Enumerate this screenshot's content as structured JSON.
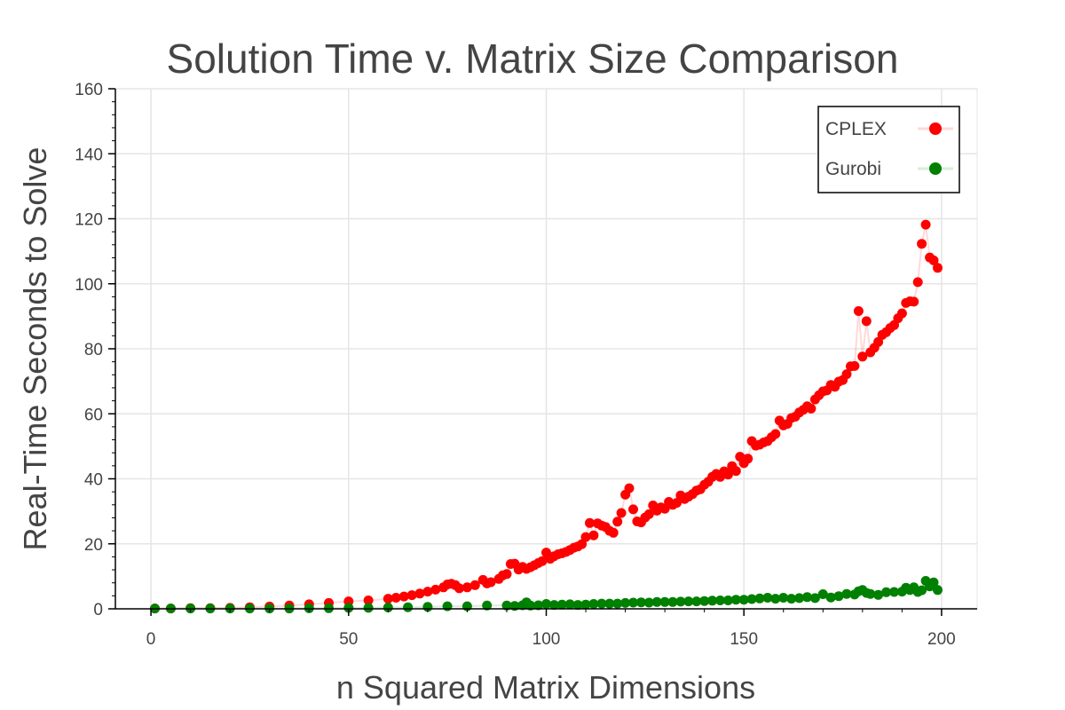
{
  "chart_data": {
    "type": "scatter",
    "title": "Solution Time v. Matrix Size Comparison",
    "xlabel": "n Squared Matrix Dimensions",
    "ylabel": "Real-Time Seconds to Solve",
    "xlim": [
      -9,
      209
    ],
    "ylim": [
      0,
      160
    ],
    "x_ticks": [
      0,
      50,
      100,
      150,
      200
    ],
    "y_ticks": [
      0,
      20,
      40,
      60,
      80,
      100,
      120,
      140,
      160
    ],
    "grid": true,
    "legend_position": "top-right",
    "series": [
      {
        "name": "CPLEX",
        "color": "#ff0000",
        "x": [
          1,
          5,
          10,
          15,
          20,
          25,
          30,
          35,
          40,
          45,
          50,
          55,
          60,
          62,
          64,
          66,
          68,
          70,
          72,
          74,
          75,
          76,
          77,
          78,
          80,
          82,
          84,
          85,
          86,
          88,
          89,
          90,
          91,
          92,
          93,
          94,
          95,
          96,
          97,
          98,
          99,
          100,
          101,
          102,
          103,
          104,
          105,
          106,
          107,
          108,
          109,
          110,
          111,
          112,
          113,
          114,
          115,
          116,
          117,
          118,
          119,
          120,
          121,
          122,
          123,
          124,
          125,
          126,
          127,
          128,
          129,
          130,
          131,
          132,
          133,
          134,
          135,
          136,
          137,
          138,
          139,
          140,
          141,
          142,
          143,
          144,
          145,
          146,
          147,
          148,
          149,
          150,
          151,
          152,
          153,
          154,
          155,
          156,
          157,
          158,
          159,
          160,
          161,
          162,
          163,
          164,
          165,
          166,
          167,
          168,
          169,
          170,
          171,
          172,
          173,
          174,
          175,
          176,
          177,
          178,
          179,
          180,
          181,
          182,
          183,
          184,
          185,
          186,
          187,
          188,
          189,
          190,
          191,
          192,
          193,
          194,
          195,
          196,
          197,
          198,
          199
        ],
        "y": [
          0.1,
          0.1,
          0.2,
          0.2,
          0.3,
          0.5,
          0.7,
          1,
          1.4,
          1.8,
          2.3,
          2.6,
          3.1,
          3.4,
          3.8,
          4.2,
          4.7,
          5.3,
          5.9,
          6.6,
          7.5,
          7.7,
          7.3,
          6.3,
          6.6,
          7.3,
          8.9,
          7.8,
          8.2,
          9.2,
          10.3,
          10.7,
          13.8,
          13.9,
          12.1,
          12.9,
          12.3,
          12.8,
          13.4,
          14.1,
          14.7,
          17.3,
          15.4,
          16.2,
          16.8,
          17.1,
          17.5,
          18.1,
          18.8,
          19.2,
          19.9,
          22.1,
          26.4,
          22.6,
          26.3,
          25.6,
          25.2,
          24,
          23.4,
          26.8,
          29.5,
          35.1,
          37.1,
          30.6,
          26.9,
          26.6,
          28.1,
          29.1,
          31.8,
          30.2,
          31.2,
          30.8,
          32.9,
          32,
          32.6,
          34.9,
          33.8,
          34.5,
          35.3,
          36.4,
          36.8,
          38.2,
          39.1,
          40.6,
          41.5,
          40.6,
          42.3,
          41.3,
          43.9,
          42.4,
          46.8,
          44.8,
          46.2,
          51.6,
          50.2,
          50.5,
          51.2,
          51.6,
          52.8,
          53.8,
          57.9,
          56.4,
          56.9,
          58.7,
          59.1,
          60.4,
          61.2,
          62.3,
          61.6,
          64.4,
          65.7,
          66.9,
          67.2,
          68.9,
          68.3,
          69.9,
          70.4,
          72.2,
          74.6,
          74.7,
          91.6,
          77.6,
          88.5,
          78.9,
          80.3,
          82.1,
          84.3,
          85.1,
          86.4,
          87.3,
          89.4,
          90.9,
          94.1,
          94.6,
          94.5,
          100.5,
          112.3,
          118.2,
          108.1,
          107.2,
          104.9
        ]
      },
      {
        "name": "Gurobi",
        "color": "#008000",
        "x": [
          1,
          5,
          10,
          15,
          20,
          25,
          30,
          35,
          40,
          45,
          50,
          55,
          60,
          65,
          70,
          75,
          80,
          85,
          90,
          92,
          94,
          95,
          96,
          98,
          100,
          102,
          104,
          106,
          108,
          110,
          112,
          114,
          116,
          118,
          120,
          122,
          124,
          126,
          128,
          130,
          132,
          134,
          136,
          138,
          140,
          142,
          144,
          146,
          148,
          150,
          152,
          154,
          156,
          158,
          160,
          162,
          164,
          166,
          168,
          170,
          172,
          174,
          176,
          178,
          179,
          180,
          181,
          182,
          184,
          186,
          188,
          190,
          191,
          192,
          193,
          194,
          195,
          196,
          197,
          198,
          199
        ],
        "y": [
          0.1,
          0.1,
          0.1,
          0.1,
          0.1,
          0.1,
          0.1,
          0.1,
          0.2,
          0.2,
          0.3,
          0.3,
          0.4,
          0.5,
          0.6,
          0.8,
          0.8,
          1,
          1,
          0.9,
          1.1,
          2,
          1,
          1.1,
          1.5,
          1.2,
          1.3,
          1.4,
          1.2,
          1.3,
          1.5,
          1.6,
          1.6,
          1.6,
          1.8,
          1.9,
          2,
          1.9,
          2.1,
          2.1,
          2.1,
          2.2,
          2.3,
          2.3,
          2.4,
          2.5,
          2.6,
          2.6,
          2.8,
          2.8,
          3,
          3.2,
          3.4,
          3.1,
          3.4,
          3.1,
          3.3,
          3.6,
          3.3,
          4.5,
          3.5,
          3.9,
          4.6,
          4.4,
          5.4,
          5.8,
          4.9,
          4.6,
          4.3,
          5.1,
          5.2,
          5.3,
          6.5,
          5.8,
          6.6,
          5.2,
          5.7,
          8.6,
          6.9,
          8.1,
          5.8
        ]
      }
    ]
  }
}
